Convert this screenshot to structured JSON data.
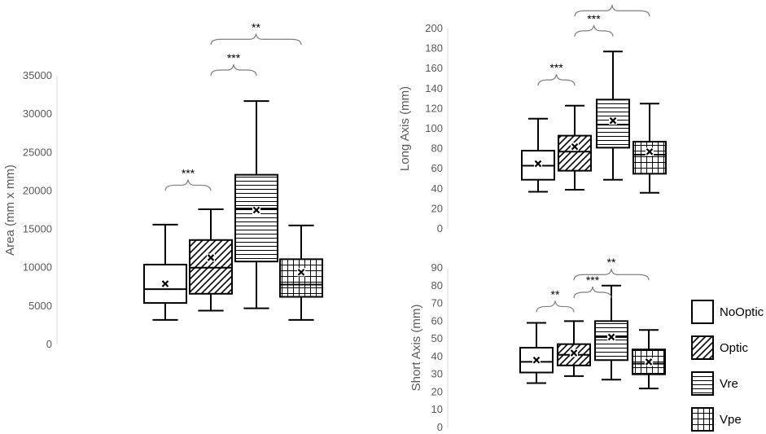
{
  "chart_data": [
    {
      "type": "box",
      "ylabel": "Area (mm x mm)",
      "ylim": [
        0,
        35000
      ],
      "yticks": [
        0,
        5000,
        10000,
        15000,
        20000,
        25000,
        30000,
        35000
      ],
      "boxes": [
        {
          "group": "NoOptic",
          "min": 3200,
          "q1": 5400,
          "median": 7200,
          "q3": 10400,
          "max": 15600,
          "mean": 7900
        },
        {
          "group": "Optic",
          "min": 4400,
          "q1": 6600,
          "median": 10000,
          "q3": 13600,
          "max": 17600,
          "mean": 11300
        },
        {
          "group": "Vre",
          "min": 4700,
          "q1": 10800,
          "median": 17700,
          "q3": 22100,
          "max": 31700,
          "mean": 17500
        },
        {
          "group": "Vpe",
          "min": 3200,
          "q1": 6200,
          "median": 7800,
          "q3": 11100,
          "max": 15500,
          "mean": 9400
        }
      ],
      "significance": [
        {
          "from": 0,
          "to": 1,
          "label": "***",
          "y": 20000
        },
        {
          "from": 1,
          "to": 2,
          "label": "***",
          "y": 35000
        },
        {
          "from": 1,
          "to": 3,
          "label": "**",
          "y": 39000
        }
      ]
    },
    {
      "type": "box",
      "ylabel": "Long Axis (mm)",
      "ylim": [
        0,
        200
      ],
      "yticks": [
        0,
        20,
        40,
        60,
        80,
        100,
        120,
        140,
        160,
        180,
        200
      ],
      "boxes": [
        {
          "group": "NoOptic",
          "min": 37,
          "q1": 49,
          "median": 63,
          "q3": 78,
          "max": 110,
          "mean": 65
        },
        {
          "group": "Optic",
          "min": 39,
          "q1": 58,
          "median": 77,
          "q3": 93,
          "max": 123,
          "mean": 82
        },
        {
          "group": "Vre",
          "min": 49,
          "q1": 81,
          "median": 104,
          "q3": 129,
          "max": 177,
          "mean": 108
        },
        {
          "group": "Vpe",
          "min": 36,
          "q1": 55,
          "median": 74,
          "q3": 87,
          "max": 125,
          "mean": 77
        }
      ],
      "significance": [
        {
          "from": 0,
          "to": 1,
          "label": "***",
          "y": 143
        },
        {
          "from": 1,
          "to": 2,
          "label": "***",
          "y": 192
        },
        {
          "from": 1,
          "to": 3,
          "label": "*",
          "y": 212
        }
      ]
    },
    {
      "type": "box",
      "ylabel": "Short Axis (mm)",
      "ylim": [
        0,
        90
      ],
      "yticks": [
        0,
        10,
        20,
        30,
        40,
        50,
        60,
        70,
        80,
        90
      ],
      "boxes": [
        {
          "group": "NoOptic",
          "min": 25,
          "q1": 31,
          "median": 37,
          "q3": 45,
          "max": 59,
          "mean": 38
        },
        {
          "group": "Optic",
          "min": 29,
          "q1": 35,
          "median": 41,
          "q3": 47,
          "max": 60,
          "mean": 42
        },
        {
          "group": "Vre",
          "min": 27,
          "q1": 38,
          "median": 51,
          "q3": 60,
          "max": 80,
          "mean": 51
        },
        {
          "group": "Vpe",
          "min": 22,
          "q1": 30,
          "median": 36,
          "q3": 44,
          "max": 55,
          "mean": 37
        }
      ],
      "significance": [
        {
          "from": 0,
          "to": 1,
          "label": "**",
          "y": 65
        },
        {
          "from": 1,
          "to": 2,
          "label": "***",
          "y": 73
        },
        {
          "from": 1,
          "to": 3,
          "label": "**",
          "y": 83
        }
      ]
    }
  ],
  "legend": [
    {
      "name": "NoOptic",
      "pattern": "none"
    },
    {
      "name": "Optic",
      "pattern": "diagonal"
    },
    {
      "name": "Vre",
      "pattern": "horizontal"
    },
    {
      "name": "Vpe",
      "pattern": "grid"
    }
  ]
}
